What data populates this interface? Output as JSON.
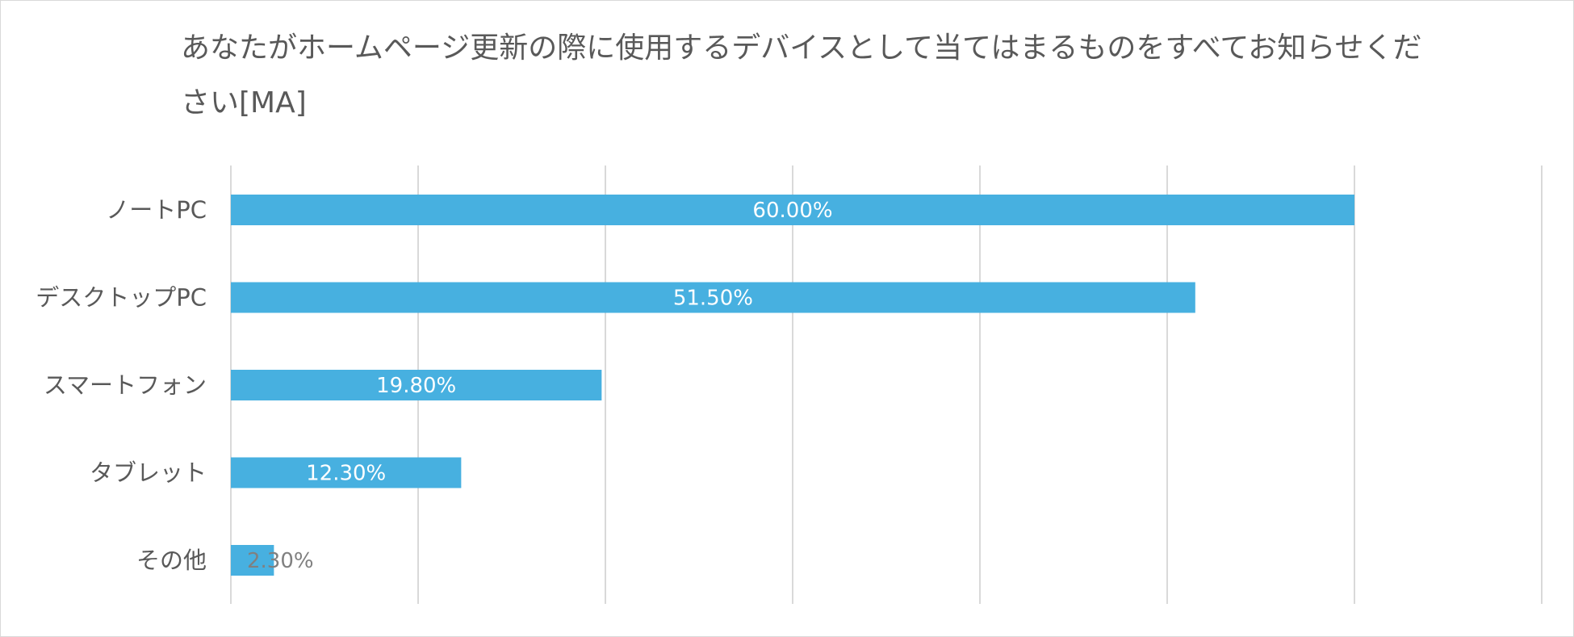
{
  "chart_data": {
    "type": "bar",
    "orientation": "horizontal",
    "title": "あなたがホームページ更新の際に使用するデバイスとして当てはまるものをすべてお知らせください[MA]",
    "categories": [
      "ノートPC",
      "デスクトップPC",
      "スマートフォン",
      "タブレット",
      "その他"
    ],
    "values": [
      60.0,
      51.5,
      19.8,
      12.3,
      2.3
    ],
    "data_labels": [
      "60.00%",
      "51.50%",
      "19.80%",
      "12.30%",
      "2.30%"
    ],
    "xlim": [
      0,
      70
    ],
    "grid": true,
    "legend": "none",
    "bar_color": "#47b0e0",
    "label_color_inside": "#ffffff",
    "label_color_outside": "#808080",
    "grid_color": "#d9d9d9"
  }
}
